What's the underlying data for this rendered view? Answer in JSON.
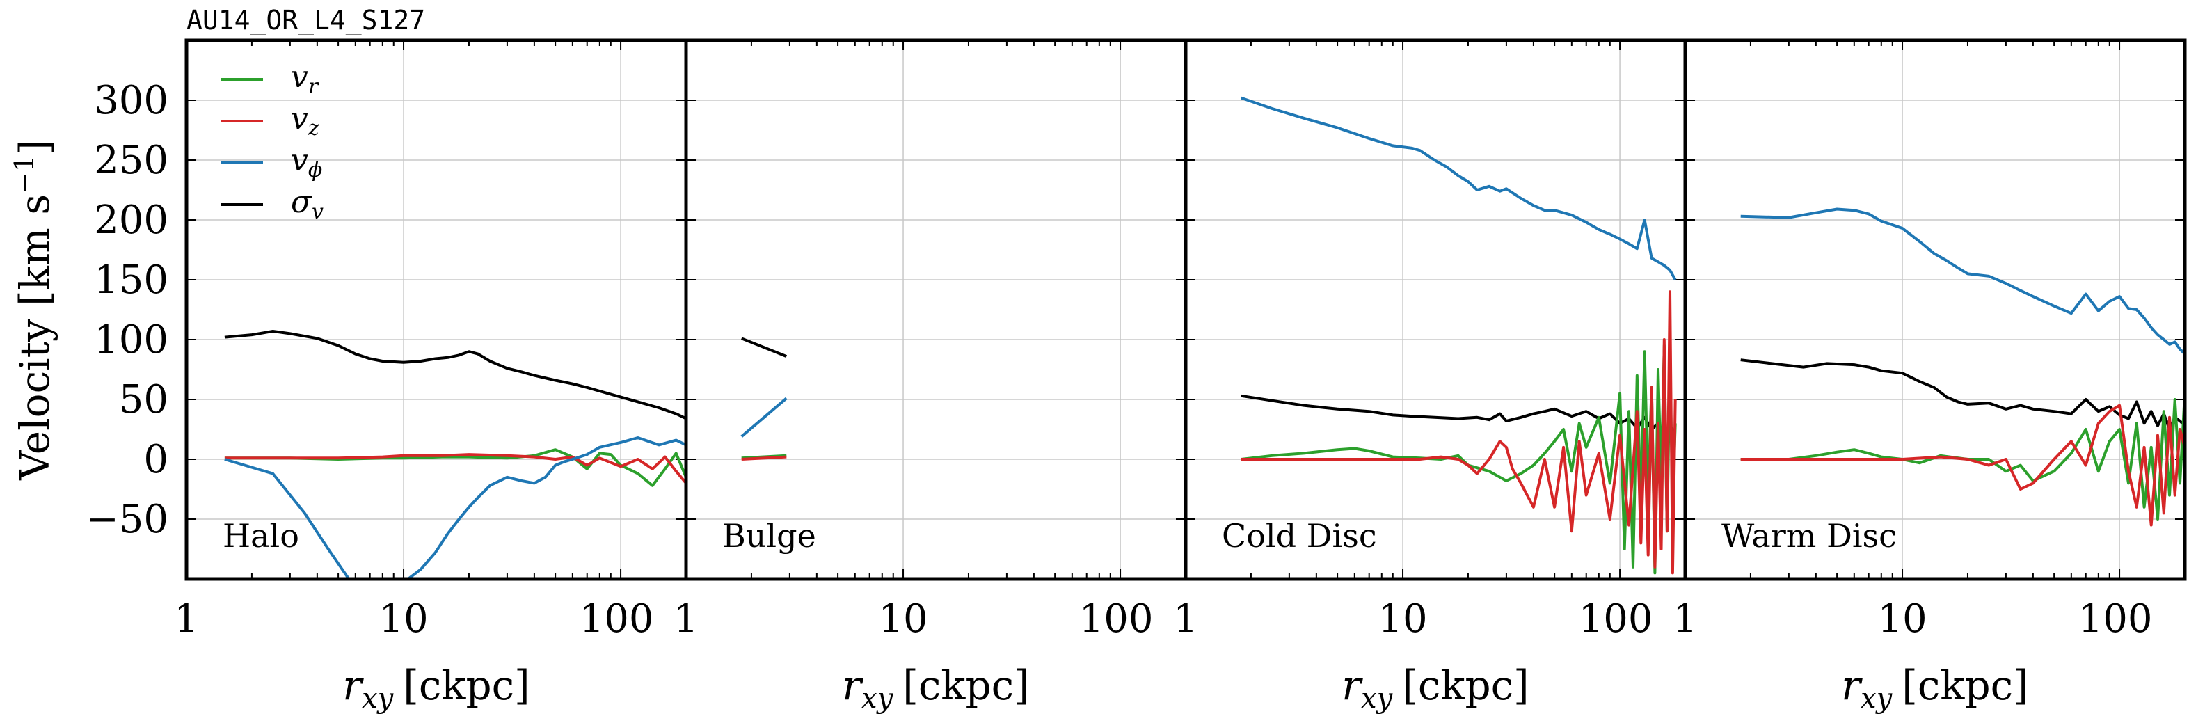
{
  "figure_title": "AU14_OR_L4_S127",
  "ylabel_main": "Velocity",
  "ylabel_unit": "[km s",
  "ylabel_exp": "−1",
  "ylabel_close": "]",
  "xlabel_var": "r",
  "xlabel_sub": "xy",
  "xlabel_unit": "[ckpc]",
  "colors": {
    "v_r": "#2ca02c",
    "v_z": "#d62728",
    "v_phi": "#1f77b4",
    "sigma_v": "#000000"
  },
  "legend": [
    {
      "key": "v_r",
      "base": "v",
      "sub": "r"
    },
    {
      "key": "v_z",
      "base": "v",
      "sub": "z"
    },
    {
      "key": "v_phi",
      "base": "v",
      "sub": "ϕ"
    },
    {
      "key": "sigma_v",
      "base": "σ",
      "sub": "v"
    }
  ],
  "legend_placement": "top-left",
  "x_ticks": [
    {
      "value": 1,
      "label": "1"
    },
    {
      "value": 10,
      "label": "10"
    },
    {
      "value": 100,
      "label": "100"
    }
  ],
  "y_ticks": [
    {
      "value": -50,
      "label": "−50"
    },
    {
      "value": 0,
      "label": "0"
    },
    {
      "value": 50,
      "label": "50"
    },
    {
      "value": 100,
      "label": "100"
    },
    {
      "value": 150,
      "label": "150"
    },
    {
      "value": 200,
      "label": "200"
    },
    {
      "value": 250,
      "label": "250"
    },
    {
      "value": 300,
      "label": "300"
    }
  ],
  "chart_data": [
    {
      "type": "line",
      "panel_label": "Halo",
      "xscale": "log",
      "xlim": [
        1,
        200
      ],
      "ylim": [
        -100,
        350
      ],
      "grid": true,
      "series": [
        {
          "key": "sigma_v",
          "x": [
            1.5,
            2,
            2.5,
            3,
            4,
            5,
            6,
            7,
            8,
            10,
            12,
            14,
            16,
            18,
            20,
            22,
            25,
            30,
            35,
            40,
            50,
            60,
            70,
            80,
            100,
            120,
            150,
            180,
            200
          ],
          "y": [
            102,
            104,
            107,
            105,
            101,
            95,
            88,
            84,
            82,
            81,
            82,
            84,
            85,
            87,
            90,
            88,
            82,
            76,
            73,
            70,
            66,
            63,
            60,
            57,
            52,
            48,
            43,
            38,
            34
          ]
        },
        {
          "key": "v_r",
          "x": [
            1.5,
            3,
            5,
            8,
            10,
            15,
            20,
            30,
            40,
            50,
            60,
            70,
            80,
            90,
            100,
            120,
            140,
            160,
            180,
            200
          ],
          "y": [
            1,
            1,
            0,
            1,
            1,
            2,
            2,
            1,
            3,
            8,
            2,
            -8,
            5,
            4,
            -5,
            -12,
            -22,
            -8,
            5,
            -15
          ]
        },
        {
          "key": "v_z",
          "x": [
            1.5,
            3,
            5,
            8,
            10,
            15,
            20,
            30,
            40,
            50,
            60,
            70,
            80,
            100,
            120,
            140,
            160,
            180,
            200
          ],
          "y": [
            1,
            1,
            1,
            2,
            3,
            3,
            4,
            3,
            2,
            0,
            2,
            -5,
            1,
            -6,
            0,
            -8,
            2,
            -10,
            -20
          ]
        },
        {
          "key": "v_phi",
          "x": [
            1.5,
            2.5,
            3.5,
            4.5,
            5.5,
            6.5,
            8,
            9.5,
            10.5,
            12,
            14,
            16,
            18,
            20,
            22,
            25,
            30,
            35,
            40,
            45,
            50,
            55,
            60,
            70,
            80,
            100,
            120,
            150,
            180,
            200
          ],
          "y": [
            0,
            -12,
            -45,
            -75,
            -98,
            -115,
            -118,
            -108,
            -100,
            -92,
            -78,
            -62,
            -50,
            -40,
            -32,
            -22,
            -15,
            -18,
            -20,
            -15,
            -5,
            -2,
            0,
            4,
            10,
            14,
            18,
            12,
            16,
            12
          ]
        }
      ]
    },
    {
      "type": "line",
      "panel_label": "Bulge",
      "xscale": "log",
      "xlim": [
        1,
        200
      ],
      "ylim": [
        -100,
        350
      ],
      "grid": true,
      "series": [
        {
          "key": "sigma_v",
          "x": [
            1.8,
            2.9
          ],
          "y": [
            101,
            86
          ]
        },
        {
          "key": "v_phi",
          "x": [
            1.8,
            2.9
          ],
          "y": [
            19,
            51
          ]
        },
        {
          "key": "v_r",
          "x": [
            1.8,
            2.9
          ],
          "y": [
            1,
            3
          ]
        },
        {
          "key": "v_z",
          "x": [
            1.8,
            2.9
          ],
          "y": [
            0,
            2
          ]
        }
      ]
    },
    {
      "type": "line",
      "panel_label": "Cold Disc",
      "xscale": "log",
      "xlim": [
        1,
        200
      ],
      "ylim": [
        -100,
        350
      ],
      "grid": true,
      "series": [
        {
          "key": "v_phi",
          "x": [
            1.8,
            2.5,
            3.5,
            5,
            7,
            9,
            11,
            12,
            14,
            16,
            18,
            20,
            22,
            25,
            28,
            30,
            35,
            40,
            45,
            50,
            60,
            70,
            80,
            90,
            100,
            110,
            120,
            130,
            140,
            150,
            160,
            170,
            180
          ],
          "y": [
            302,
            293,
            285,
            277,
            268,
            262,
            260,
            258,
            250,
            244,
            237,
            232,
            225,
            228,
            224,
            226,
            218,
            212,
            208,
            208,
            204,
            198,
            192,
            188,
            184,
            180,
            176,
            200,
            168,
            165,
            162,
            158,
            150
          ]
        },
        {
          "key": "sigma_v",
          "x": [
            1.8,
            2.5,
            3.5,
            5,
            7,
            9,
            11,
            14,
            18,
            22,
            25,
            28,
            30,
            35,
            40,
            45,
            50,
            60,
            70,
            80,
            90,
            100,
            110,
            120,
            130,
            140,
            150,
            160,
            170,
            180
          ],
          "y": [
            53,
            49,
            45,
            42,
            40,
            37,
            36,
            35,
            34,
            35,
            33,
            38,
            32,
            35,
            38,
            40,
            42,
            36,
            40,
            34,
            38,
            30,
            34,
            26,
            35,
            25,
            30,
            20,
            28,
            22
          ]
        },
        {
          "key": "v_r",
          "x": [
            1.8,
            2.5,
            3.5,
            5,
            6,
            7,
            9,
            12,
            15,
            18,
            20,
            25,
            30,
            35,
            40,
            45,
            50,
            55,
            60,
            65,
            70,
            80,
            90,
            100,
            105,
            110,
            115,
            120,
            125,
            130,
            135,
            140,
            145,
            150,
            155,
            160,
            165,
            170,
            175,
            180
          ],
          "y": [
            0,
            3,
            5,
            8,
            9,
            7,
            2,
            1,
            0,
            3,
            -5,
            -10,
            -18,
            -12,
            -5,
            5,
            15,
            25,
            -10,
            30,
            10,
            35,
            -20,
            55,
            -75,
            40,
            -90,
            70,
            -40,
            90,
            -30,
            60,
            -95,
            75,
            -20,
            95,
            -60,
            85,
            -40,
            30
          ]
        },
        {
          "key": "v_z",
          "x": [
            1.8,
            2.5,
            3.5,
            5,
            7,
            9,
            12,
            15,
            18,
            20,
            22,
            25,
            28,
            30,
            32,
            35,
            40,
            45,
            50,
            55,
            60,
            65,
            70,
            80,
            90,
            100,
            110,
            120,
            125,
            130,
            135,
            140,
            145,
            150,
            155,
            160,
            165,
            170,
            175,
            180
          ],
          "y": [
            0,
            0,
            0,
            0,
            0,
            0,
            0,
            2,
            0,
            -5,
            -12,
            0,
            15,
            10,
            -8,
            -20,
            -40,
            0,
            -40,
            10,
            -60,
            15,
            -30,
            5,
            -50,
            20,
            -55,
            40,
            -70,
            25,
            -80,
            60,
            -90,
            30,
            -75,
            100,
            -60,
            140,
            -95,
            50
          ]
        }
      ]
    },
    {
      "type": "line",
      "panel_label": "Warm Disc",
      "xscale": "log",
      "xlim": [
        1,
        200
      ],
      "ylim": [
        -100,
        350
      ],
      "grid": true,
      "series": [
        {
          "key": "v_phi",
          "x": [
            1.8,
            3,
            4,
            5,
            6,
            7,
            8,
            10,
            12,
            14,
            16,
            18,
            20,
            25,
            30,
            35,
            40,
            50,
            60,
            70,
            80,
            90,
            100,
            110,
            120,
            130,
            140,
            150,
            160,
            170,
            180,
            190,
            200
          ],
          "y": [
            203,
            202,
            206,
            209,
            208,
            205,
            199,
            193,
            182,
            172,
            166,
            160,
            155,
            153,
            147,
            141,
            136,
            128,
            122,
            138,
            124,
            132,
            136,
            126,
            125,
            118,
            110,
            104,
            100,
            96,
            98,
            92,
            88
          ]
        },
        {
          "key": "sigma_v",
          "x": [
            1.8,
            2.5,
            3.5,
            4.5,
            6,
            7,
            8,
            10,
            12,
            14,
            16,
            18,
            20,
            25,
            30,
            35,
            40,
            50,
            60,
            70,
            80,
            90,
            100,
            110,
            120,
            130,
            140,
            150,
            160,
            170,
            180,
            190,
            200
          ],
          "y": [
            83,
            80,
            77,
            80,
            79,
            77,
            74,
            72,
            65,
            60,
            52,
            48,
            46,
            47,
            42,
            45,
            42,
            40,
            38,
            50,
            40,
            44,
            37,
            34,
            48,
            30,
            40,
            28,
            38,
            25,
            35,
            32,
            28
          ]
        },
        {
          "key": "v_r",
          "x": [
            1.8,
            3,
            4,
            5,
            6,
            7,
            8,
            10,
            12,
            15,
            20,
            25,
            30,
            35,
            40,
            50,
            60,
            70,
            80,
            90,
            100,
            110,
            120,
            130,
            140,
            150,
            160,
            170,
            180,
            190,
            200
          ],
          "y": [
            0,
            0,
            3,
            6,
            8,
            5,
            2,
            0,
            -3,
            3,
            0,
            0,
            -10,
            -5,
            -18,
            -10,
            5,
            25,
            -10,
            15,
            25,
            -20,
            30,
            -40,
            10,
            -50,
            40,
            -30,
            50,
            -20,
            55
          ]
        },
        {
          "key": "v_z",
          "x": [
            1.8,
            3,
            5,
            8,
            10,
            15,
            20,
            25,
            30,
            35,
            40,
            50,
            60,
            70,
            80,
            90,
            100,
            110,
            120,
            130,
            140,
            150,
            160,
            170,
            180,
            190,
            200
          ],
          "y": [
            0,
            0,
            0,
            0,
            0,
            2,
            0,
            -5,
            0,
            -25,
            -20,
            0,
            15,
            -5,
            30,
            40,
            45,
            -10,
            -40,
            10,
            -55,
            20,
            -45,
            35,
            -30,
            25,
            10
          ]
        }
      ]
    }
  ]
}
